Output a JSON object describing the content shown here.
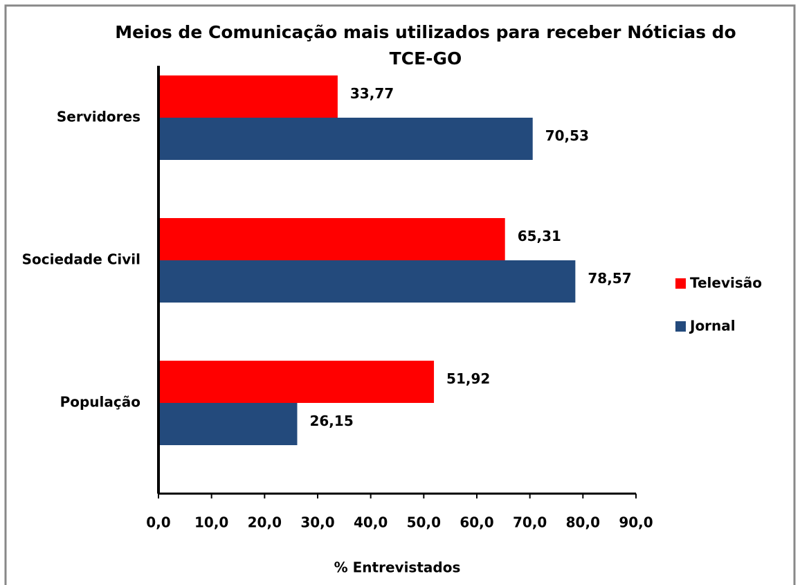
{
  "chart_data": {
    "type": "barh",
    "title": "Meios de Comunicação mais utilizados para receber Nóticias do TCE-GO",
    "xlabel": "% Entrevistados",
    "categories": [
      "Servidores",
      "Sociedade Civil",
      "População"
    ],
    "series": [
      {
        "name": "Televisão",
        "color": "#ff0000",
        "values": [
          33.77,
          65.31,
          51.92
        ],
        "value_labels": [
          "33,77",
          "65,31",
          "51,92"
        ]
      },
      {
        "name": "Jornal",
        "color": "#234a7c",
        "values": [
          70.53,
          78.57,
          26.15
        ],
        "value_labels": [
          "70,53",
          "78,57",
          "26,15"
        ]
      }
    ],
    "xlim": [
      0,
      90
    ],
    "xticks": [
      {
        "value": 0,
        "label": "0,0"
      },
      {
        "value": 10,
        "label": "10,0"
      },
      {
        "value": 20,
        "label": "20,0"
      },
      {
        "value": 30,
        "label": "30,0"
      },
      {
        "value": 40,
        "label": "40,0"
      },
      {
        "value": 50,
        "label": "50,0"
      },
      {
        "value": 60,
        "label": "60,0"
      },
      {
        "value": 70,
        "label": "70,0"
      },
      {
        "value": 80,
        "label": "80,0"
      },
      {
        "value": 90,
        "label": "90,0"
      }
    ],
    "legend": "right"
  }
}
